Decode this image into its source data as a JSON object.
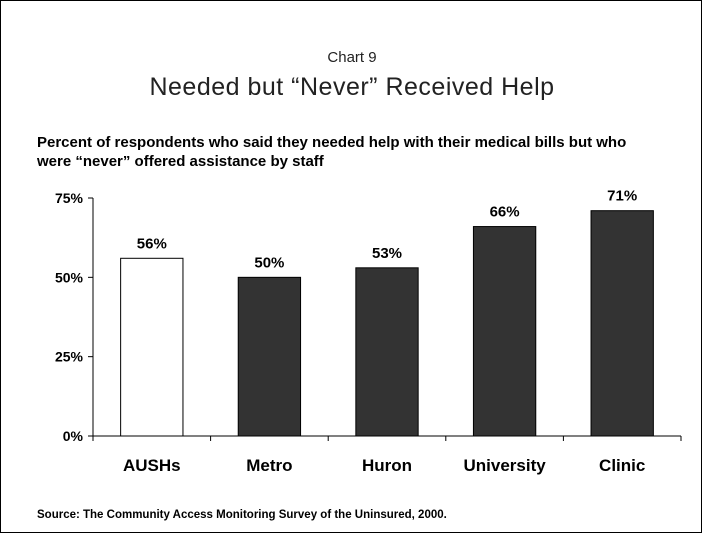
{
  "chart_label": "Chart 9",
  "title": "Needed but “Never” Received Help",
  "subtitle": "Percent of respondents who said they needed help with their medical bills but who were “never” offered assistance by staff",
  "source": "Source: The Community Access Monitoring Survey of the Uninsured, 2000.",
  "chart_data": {
    "type": "bar",
    "title": "Needed but “Never” Received Help",
    "subtitle": "Percent of respondents who said they needed help with their medical bills but who were “never” offered assistance by staff",
    "xlabel": "",
    "ylabel": "",
    "categories": [
      "AUSHs",
      "Metro",
      "Huron",
      "University",
      "Clinic"
    ],
    "values": [
      56,
      50,
      53,
      66,
      71
    ],
    "data_labels": [
      "56%",
      "50%",
      "53%",
      "66%",
      "71%"
    ],
    "bar_fills": [
      "#ffffff",
      "#333333",
      "#333333",
      "#333333",
      "#333333"
    ],
    "ylim": [
      0,
      75
    ],
    "yticks": [
      0,
      25,
      50,
      75
    ],
    "ytick_labels": [
      "0%",
      "25%",
      "50%",
      "75%"
    ],
    "grid": false,
    "legend": "none"
  }
}
